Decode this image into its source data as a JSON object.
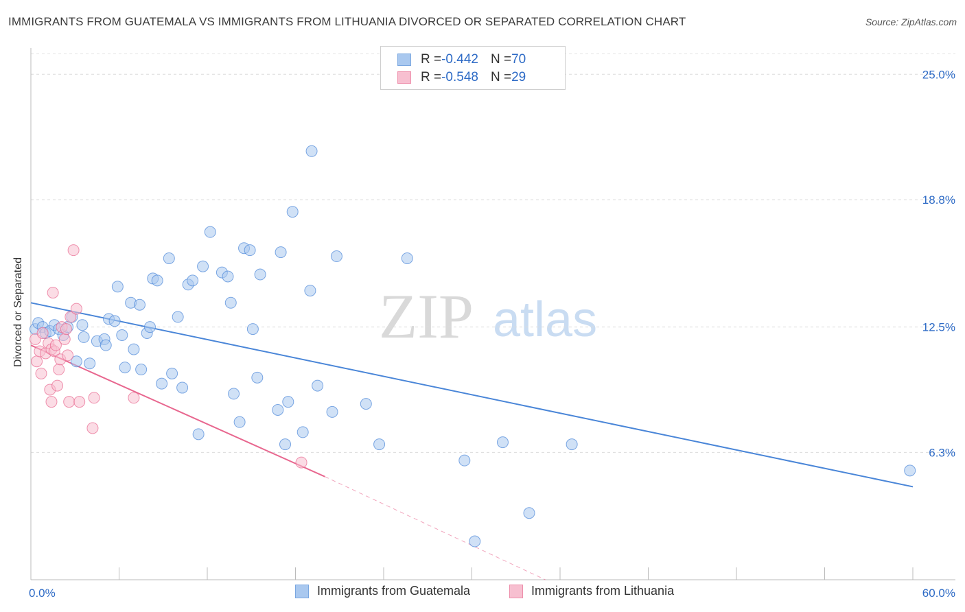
{
  "header": {
    "title": "IMMIGRANTS FROM GUATEMALA VS IMMIGRANTS FROM LITHUANIA DIVORCED OR SEPARATED CORRELATION CHART",
    "source": "Source: ZipAtlas.com"
  },
  "watermark": {
    "zip": "ZIP",
    "atlas": "atlas"
  },
  "legend": {
    "rows": [
      {
        "r_label": "R = ",
        "r_value": "-0.442",
        "n_label": "N = ",
        "n_value": "70",
        "color": "#a9c8ef",
        "border": "#7aa7e0"
      },
      {
        "r_label": "R = ",
        "r_value": "-0.548",
        "n_label": "N = ",
        "n_value": "29",
        "color": "#f7bfd0",
        "border": "#ee8fab"
      }
    ]
  },
  "bottom_legend": {
    "items": [
      {
        "label": "Immigrants from Guatemala",
        "color": "#a9c8ef",
        "border": "#7aa7e0"
      },
      {
        "label": "Immigrants from Lithuania",
        "color": "#f7bfd0",
        "border": "#ee8fab"
      }
    ]
  },
  "chart_data": {
    "type": "scatter",
    "title": "IMMIGRANTS FROM GUATEMALA VS IMMIGRANTS FROM LITHUANIA DIVORCED OR SEPARATED CORRELATION CHART",
    "xlabel": "",
    "ylabel": "Divorced or Separated",
    "xlim": [
      0,
      60
    ],
    "ylim": [
      0,
      26.3
    ],
    "x_tick_labels": [
      {
        "value": 0,
        "label": "0.0%"
      },
      {
        "value": 60,
        "label": "60.0%"
      }
    ],
    "y_tick_labels": [
      {
        "value": 6.3,
        "label": "6.3%"
      },
      {
        "value": 12.5,
        "label": "12.5%"
      },
      {
        "value": 18.8,
        "label": "18.8%"
      },
      {
        "value": 25.0,
        "label": "25.0%"
      }
    ],
    "grid": "horizontal dashed",
    "series": [
      {
        "name": "Immigrants from Guatemala",
        "color": "#4a86d8",
        "fill": "#a9c8ef",
        "trend": {
          "x": [
            0,
            60
          ],
          "y": [
            13.7,
            4.6
          ]
        },
        "points": [
          [
            0.3,
            12.4
          ],
          [
            0.5,
            12.7
          ],
          [
            0.8,
            12.5
          ],
          [
            1.0,
            12.2
          ],
          [
            1.3,
            12.3
          ],
          [
            1.6,
            12.6
          ],
          [
            1.9,
            12.4
          ],
          [
            2.2,
            12.1
          ],
          [
            2.5,
            12.5
          ],
          [
            2.8,
            13.0
          ],
          [
            3.1,
            10.8
          ],
          [
            3.5,
            12.6
          ],
          [
            3.6,
            12.0
          ],
          [
            4.0,
            10.7
          ],
          [
            4.5,
            11.8
          ],
          [
            5.0,
            11.9
          ],
          [
            5.1,
            11.6
          ],
          [
            5.3,
            12.9
          ],
          [
            5.7,
            12.8
          ],
          [
            5.9,
            14.5
          ],
          [
            6.2,
            12.1
          ],
          [
            6.4,
            10.5
          ],
          [
            6.8,
            13.7
          ],
          [
            7.0,
            11.4
          ],
          [
            7.4,
            13.6
          ],
          [
            7.5,
            10.4
          ],
          [
            7.9,
            12.2
          ],
          [
            8.1,
            12.5
          ],
          [
            8.3,
            14.9
          ],
          [
            8.6,
            14.8
          ],
          [
            8.9,
            9.7
          ],
          [
            9.4,
            15.9
          ],
          [
            9.6,
            10.2
          ],
          [
            10.0,
            13.0
          ],
          [
            10.3,
            9.5
          ],
          [
            10.7,
            14.6
          ],
          [
            11.0,
            14.8
          ],
          [
            11.4,
            7.2
          ],
          [
            11.7,
            15.5
          ],
          [
            12.2,
            17.2
          ],
          [
            13.0,
            15.2
          ],
          [
            13.4,
            15.0
          ],
          [
            13.6,
            13.7
          ],
          [
            13.8,
            9.2
          ],
          [
            14.2,
            7.8
          ],
          [
            14.5,
            16.4
          ],
          [
            14.9,
            16.3
          ],
          [
            15.1,
            12.4
          ],
          [
            15.4,
            10.0
          ],
          [
            15.6,
            15.1
          ],
          [
            16.8,
            8.4
          ],
          [
            17.0,
            16.2
          ],
          [
            17.3,
            6.7
          ],
          [
            17.5,
            8.8
          ],
          [
            17.8,
            18.2
          ],
          [
            18.5,
            7.3
          ],
          [
            19.0,
            14.3
          ],
          [
            19.1,
            21.2
          ],
          [
            19.5,
            9.6
          ],
          [
            20.5,
            8.3
          ],
          [
            20.8,
            16.0
          ],
          [
            22.8,
            8.7
          ],
          [
            23.7,
            6.7
          ],
          [
            25.6,
            15.9
          ],
          [
            29.5,
            5.9
          ],
          [
            32.1,
            6.8
          ],
          [
            33.9,
            3.3
          ],
          [
            36.8,
            6.7
          ],
          [
            30.2,
            1.9
          ],
          [
            59.8,
            5.4
          ]
        ]
      },
      {
        "name": "Immigrants from Lithuania",
        "color": "#e8678f",
        "fill": "#f7bfd0",
        "trend": {
          "x": [
            0,
            20
          ],
          "y": [
            11.6,
            5.1
          ]
        },
        "trend_dashed": {
          "x": [
            20,
            35
          ],
          "y": [
            5.1,
            0
          ]
        },
        "points": [
          [
            0.3,
            11.9
          ],
          [
            0.4,
            10.8
          ],
          [
            0.6,
            11.3
          ],
          [
            0.7,
            10.2
          ],
          [
            0.8,
            12.2
          ],
          [
            1.0,
            11.2
          ],
          [
            1.2,
            11.7
          ],
          [
            1.3,
            9.4
          ],
          [
            1.4,
            11.4
          ],
          [
            1.4,
            8.8
          ],
          [
            1.5,
            14.2
          ],
          [
            1.6,
            11.3
          ],
          [
            1.7,
            11.6
          ],
          [
            1.8,
            9.6
          ],
          [
            1.9,
            10.4
          ],
          [
            2.0,
            10.9
          ],
          [
            2.1,
            12.5
          ],
          [
            2.3,
            11.9
          ],
          [
            2.4,
            12.4
          ],
          [
            2.5,
            11.1
          ],
          [
            2.6,
            8.8
          ],
          [
            2.7,
            13.0
          ],
          [
            2.9,
            16.3
          ],
          [
            3.1,
            13.4
          ],
          [
            3.3,
            8.8
          ],
          [
            4.2,
            7.5
          ],
          [
            4.3,
            9.0
          ],
          [
            7.0,
            9.0
          ],
          [
            18.4,
            5.8
          ]
        ]
      }
    ]
  }
}
